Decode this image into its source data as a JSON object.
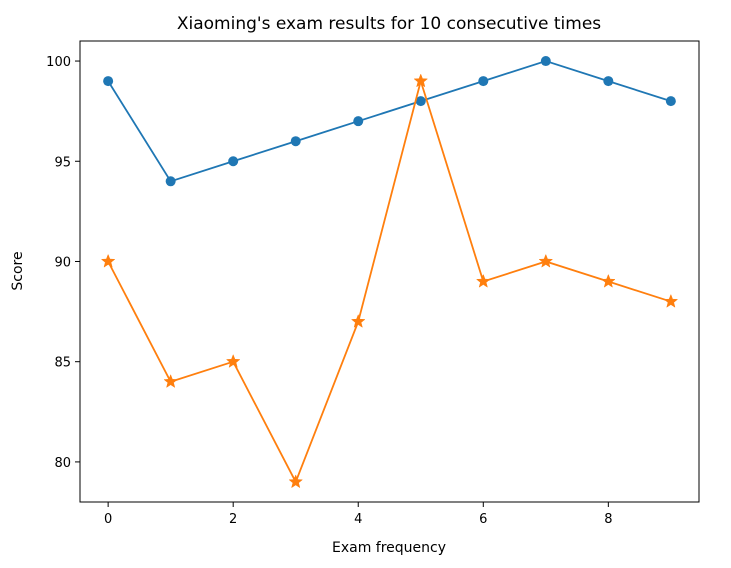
{
  "chart_data": {
    "type": "line",
    "title": "Xiaoming's exam results for 10 consecutive times",
    "xlabel": "Exam frequency",
    "ylabel": "Score",
    "x": [
      0,
      1,
      2,
      3,
      4,
      5,
      6,
      7,
      8,
      9
    ],
    "xlim": [
      -0.45,
      9.45
    ],
    "ylim": [
      78.0,
      101.0
    ],
    "xticks": [
      0,
      2,
      4,
      6,
      8
    ],
    "yticks": [
      80,
      85,
      90,
      95,
      100
    ],
    "grid": false,
    "series": [
      {
        "values": [
          99,
          94,
          95,
          96,
          97,
          98,
          99,
          100,
          99,
          98
        ],
        "marker": "circle",
        "color": "#1f77b4"
      },
      {
        "values": [
          90,
          84,
          85,
          79,
          87,
          99,
          89,
          90,
          89,
          88
        ],
        "marker": "star",
        "color": "#ff7f0e"
      }
    ]
  }
}
